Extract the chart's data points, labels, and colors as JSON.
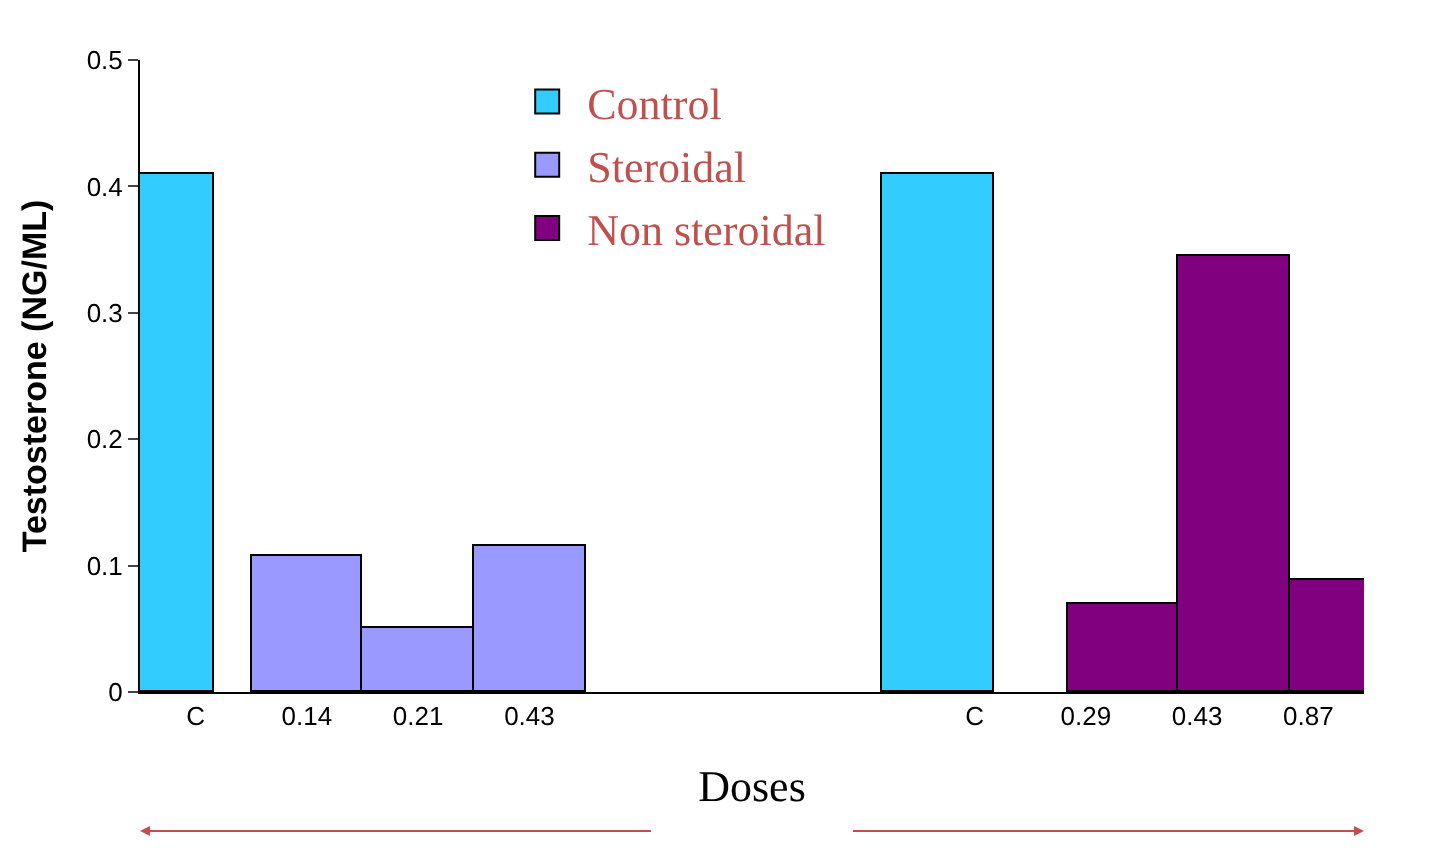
{
  "chart_data": {
    "type": "bar",
    "xlabel": "Doses",
    "ylabel": "Testosterone (NG/ML)",
    "categories": [
      "C",
      "0.14",
      "0.21",
      "0.43",
      null,
      null,
      null,
      "C",
      "0.29",
      "0.43",
      "0.87"
    ],
    "series": [
      {
        "name": "Control",
        "color": "#33ccff",
        "values": [
          0.41,
          null,
          null,
          null,
          null,
          null,
          null,
          0.41,
          null,
          null,
          null
        ]
      },
      {
        "name": "Steroidal",
        "color": "#9999ff",
        "values": [
          null,
          0.107,
          0.05,
          0.115,
          null,
          null,
          null,
          null,
          null,
          null,
          null
        ]
      },
      {
        "name": "Non steroidal",
        "color": "#800080",
        "values": [
          null,
          null,
          null,
          null,
          null,
          null,
          null,
          null,
          0.07,
          0.345,
          0.088
        ]
      }
    ],
    "ylim": [
      0,
      0.5
    ],
    "yticks": [
      0,
      0.1,
      0.2,
      0.3,
      0.4,
      0.5
    ],
    "legend": "top left"
  }
}
